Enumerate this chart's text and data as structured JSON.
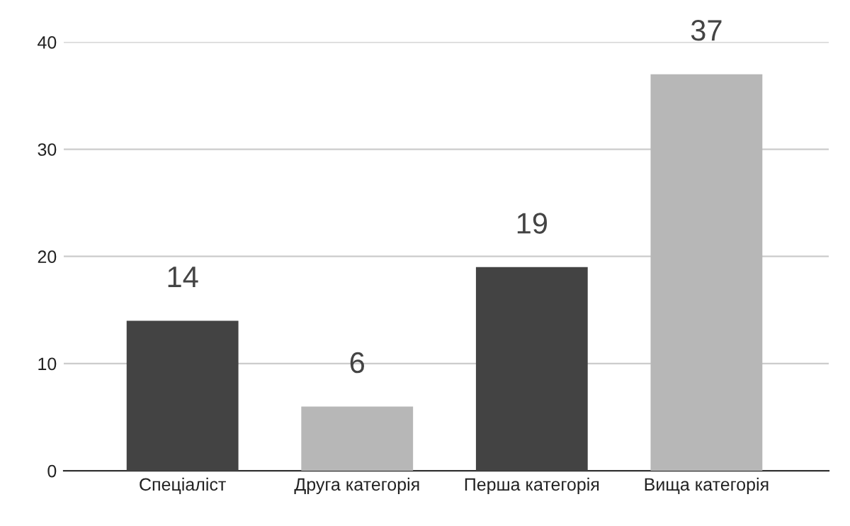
{
  "chart_data": {
    "type": "bar",
    "categories": [
      "Спеціаліст",
      "Друга категорія",
      "Перша категорія",
      "Вища категорія"
    ],
    "values": [
      14,
      6,
      19,
      37
    ],
    "colors": [
      "#434343",
      "#b7b7b7",
      "#434343",
      "#b7b7b7"
    ],
    "ylim": [
      0,
      40
    ],
    "yticks": [
      0,
      10,
      20,
      30,
      40
    ],
    "grid": "y",
    "data_labels": true,
    "legend": false
  }
}
